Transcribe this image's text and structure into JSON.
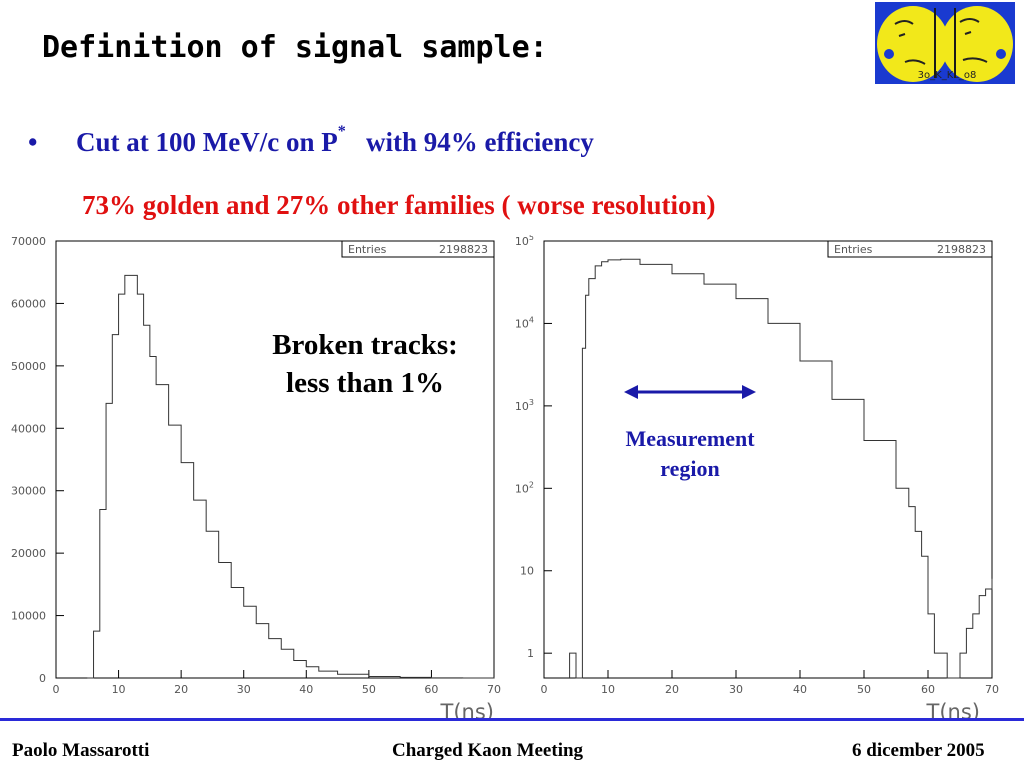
{
  "slide": {
    "title": "Definition of signal sample:",
    "bullet": {
      "marker": "•",
      "text_before_sup": "Cut at 100 MeV/c on P",
      "sup": "*",
      "text_after_sup": "   with 94% efficiency"
    },
    "subline": "73% golden  and  27% other families ( worse resolution)",
    "annotation_broken": [
      "Broken tracks:",
      "less than 1%"
    ],
    "annotation_measurement": [
      "Measurement",
      "region"
    ],
    "footer": {
      "left": "Paolo Massarotti",
      "center": "Charged Kaon Meeting",
      "right": "6 dicember 2005"
    },
    "colors": {
      "blue": "#1a1aa8",
      "red": "#e01010",
      "footer_line": "#2a2ad8"
    },
    "logo_icon": "kloe-faces-logo"
  },
  "chart_data": [
    {
      "type": "histogram",
      "scale": "linear",
      "stats_box": {
        "label": "Entries",
        "value": "2198823"
      },
      "xlabel": "T(ns)",
      "xlim": [
        0,
        70
      ],
      "ylim": [
        0,
        70000
      ],
      "x_ticks": [
        "0",
        "10",
        "20",
        "30",
        "40",
        "50",
        "60",
        "70"
      ],
      "y_ticks": [
        "0",
        "10000",
        "20000",
        "30000",
        "40000",
        "50000",
        "60000",
        "70000"
      ],
      "x": [
        5,
        6,
        7,
        8,
        9,
        10,
        11,
        12,
        13,
        14,
        15,
        16,
        18,
        20,
        22,
        24,
        26,
        28,
        30,
        32,
        34,
        36,
        38,
        40,
        42,
        45,
        50,
        55,
        60,
        65,
        70
      ],
      "values": [
        0,
        7500,
        27000,
        44000,
        55000,
        61500,
        64500,
        64500,
        61500,
        56500,
        51500,
        47000,
        40500,
        34500,
        28500,
        23500,
        18500,
        14500,
        11500,
        8700,
        6300,
        4600,
        2800,
        1800,
        1100,
        600,
        250,
        100,
        30,
        10,
        0
      ]
    },
    {
      "type": "histogram",
      "scale": "log",
      "stats_box": {
        "label": "Entries",
        "value": "2198823"
      },
      "xlabel": "T(ns)",
      "xlim": [
        0,
        70
      ],
      "ylim": [
        0.5,
        100000
      ],
      "x_ticks": [
        "0",
        "10",
        "20",
        "30",
        "40",
        "50",
        "60",
        "70"
      ],
      "y_ticks": [
        "1",
        "10",
        "10^2",
        "10^3",
        "10^4",
        "10^5"
      ],
      "x": [
        4,
        5,
        6,
        6.5,
        7,
        8,
        9,
        10,
        12,
        15,
        20,
        25,
        30,
        35,
        40,
        45,
        50,
        55,
        57,
        58,
        59,
        60,
        61,
        62,
        63,
        64,
        65,
        66,
        67,
        68,
        69,
        70
      ],
      "values": [
        1,
        0.5,
        5000,
        22000,
        35000,
        50000,
        56000,
        59000,
        60000,
        52000,
        40000,
        30000,
        20000,
        10000,
        3500,
        1200,
        380,
        100,
        60,
        30,
        15,
        3,
        1,
        1,
        0.5,
        0.5,
        1,
        2,
        3,
        5,
        6,
        8
      ]
    }
  ]
}
